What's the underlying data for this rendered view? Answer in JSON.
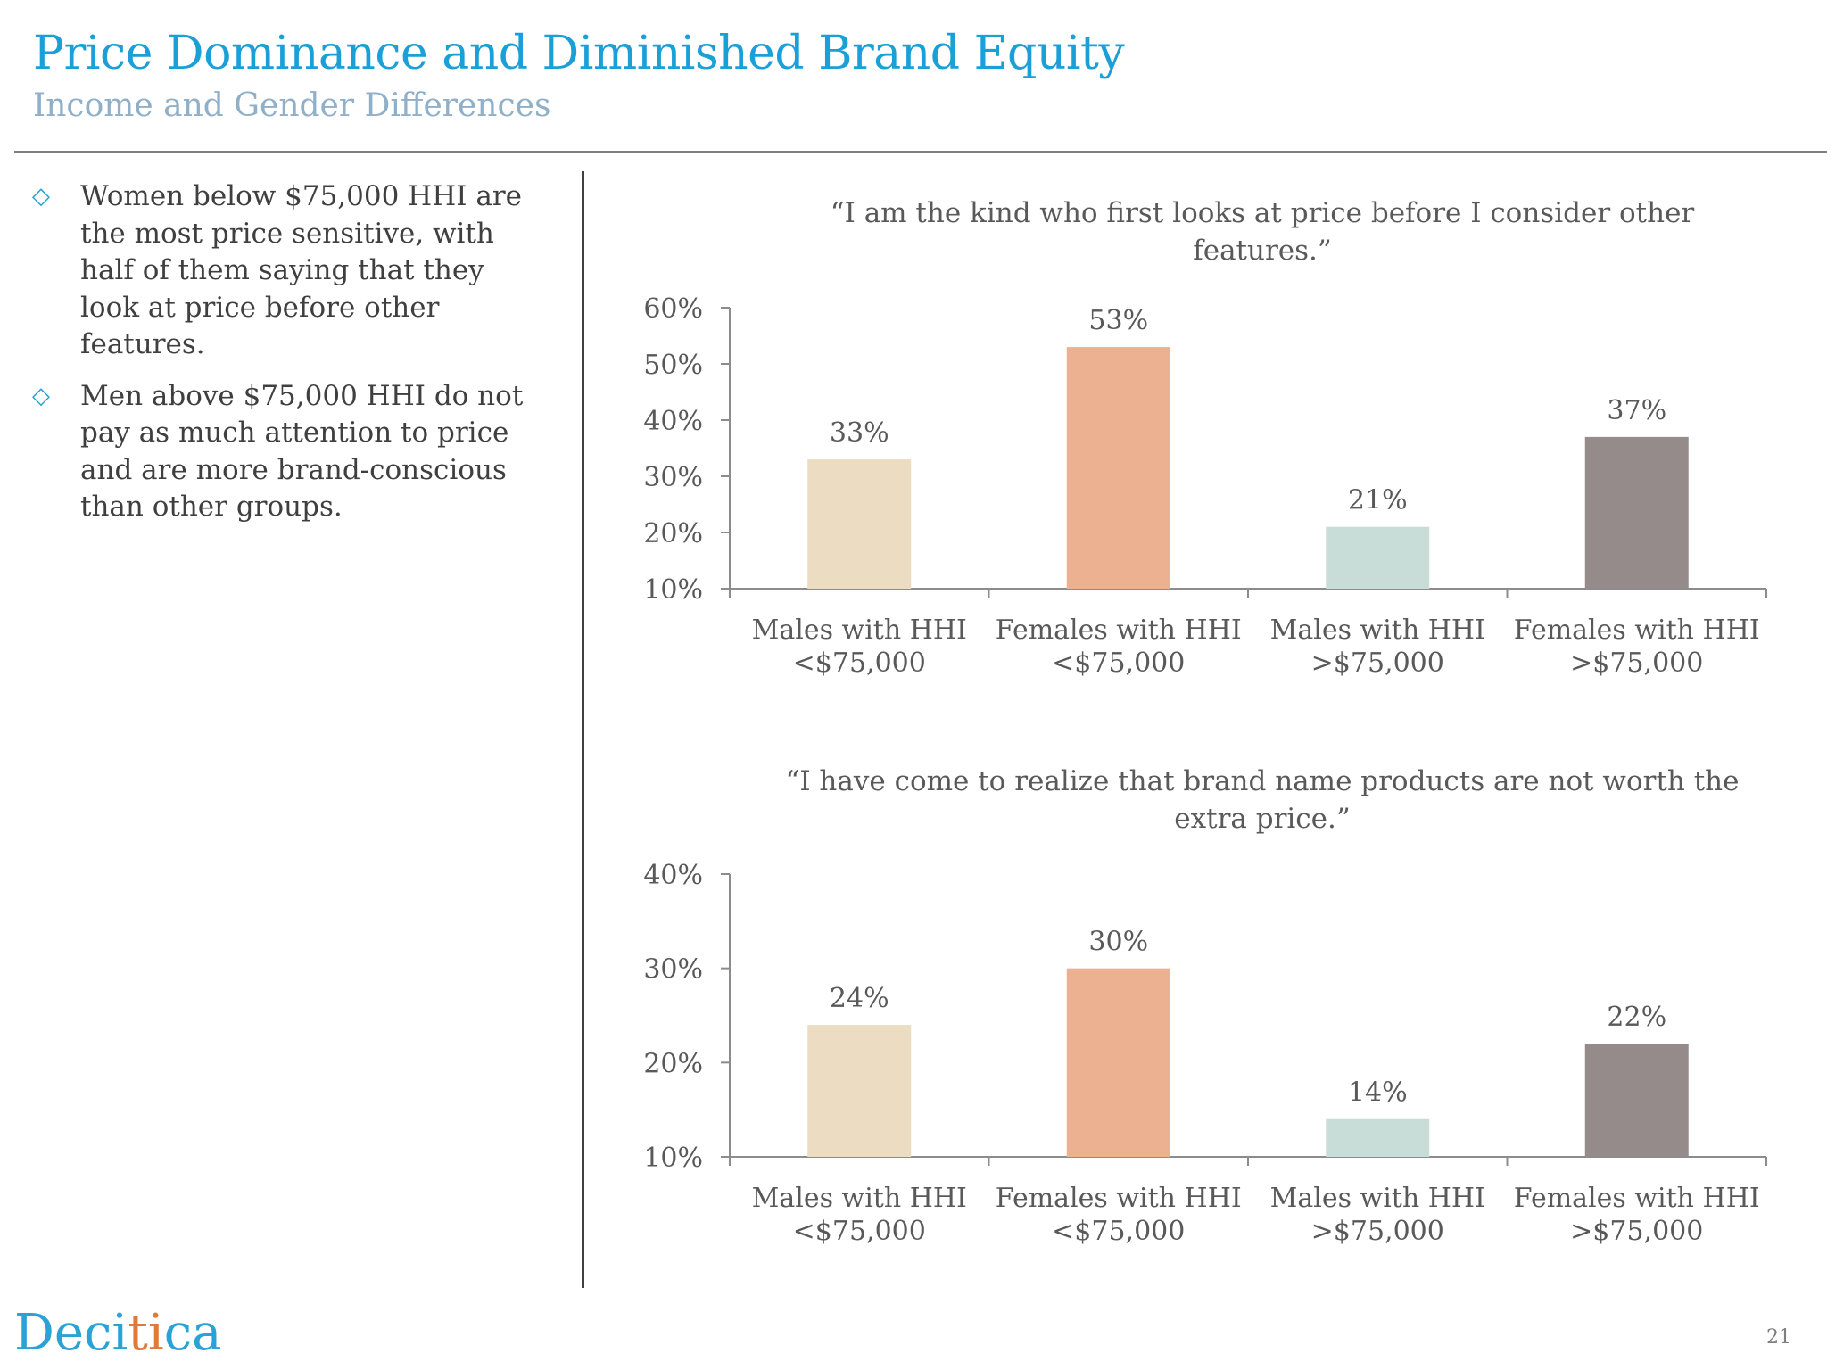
{
  "header": {
    "title": "Price Dominance and Diminished Brand Equity",
    "subtitle": "Income and Gender Differences"
  },
  "bullets": [
    "Women below $75,000 HHI are the most price sensitive, with half of them saying that they look at price before other features.",
    "Men above $75,000 HHI do not pay as much attention to price and are more brand-conscious than other groups."
  ],
  "bullet_icon": "diamond-outline-icon",
  "colors": {
    "title": "#1a9fd6",
    "subtitle": "#8fb0c8",
    "bars": [
      "#ebdcc2",
      "#ebb191",
      "#c9ddd8",
      "#958b8a"
    ]
  },
  "chart_data": [
    {
      "type": "bar",
      "title": "“I am the kind who first looks at price before I consider other features.”",
      "categories": [
        [
          "Males with HHI",
          "<$75,000"
        ],
        [
          "Females with HHI",
          "<$75,000"
        ],
        [
          "Males with HHI",
          ">$75,000"
        ],
        [
          "Females with HHI",
          ">$75,000"
        ]
      ],
      "values": [
        33,
        53,
        21,
        37
      ],
      "data_labels": [
        "33%",
        "53%",
        "21%",
        "37%"
      ],
      "ylim": [
        10,
        60
      ],
      "yticks": [
        10,
        20,
        30,
        40,
        50,
        60
      ],
      "ytick_labels": [
        "10%",
        "20%",
        "30%",
        "40%",
        "50%",
        "60%"
      ],
      "grid": false,
      "legend": "none"
    },
    {
      "type": "bar",
      "title": "“I have come to realize that brand name products are not worth the extra price.”",
      "categories": [
        [
          "Males with HHI",
          "<$75,000"
        ],
        [
          "Females with HHI",
          "<$75,000"
        ],
        [
          "Males with HHI",
          ">$75,000"
        ],
        [
          "Females with HHI",
          ">$75,000"
        ]
      ],
      "values": [
        24,
        30,
        14,
        22
      ],
      "data_labels": [
        "24%",
        "30%",
        "14%",
        "22%"
      ],
      "ylim": [
        10,
        40
      ],
      "yticks": [
        10,
        20,
        30,
        40
      ],
      "ytick_labels": [
        "10%",
        "20%",
        "30%",
        "40%"
      ],
      "grid": false,
      "legend": "none"
    }
  ],
  "footer": {
    "logo_text_pre": "Deci",
    "logo_text_accent": "ti",
    "logo_text_post": "ca",
    "page_number": "21"
  }
}
